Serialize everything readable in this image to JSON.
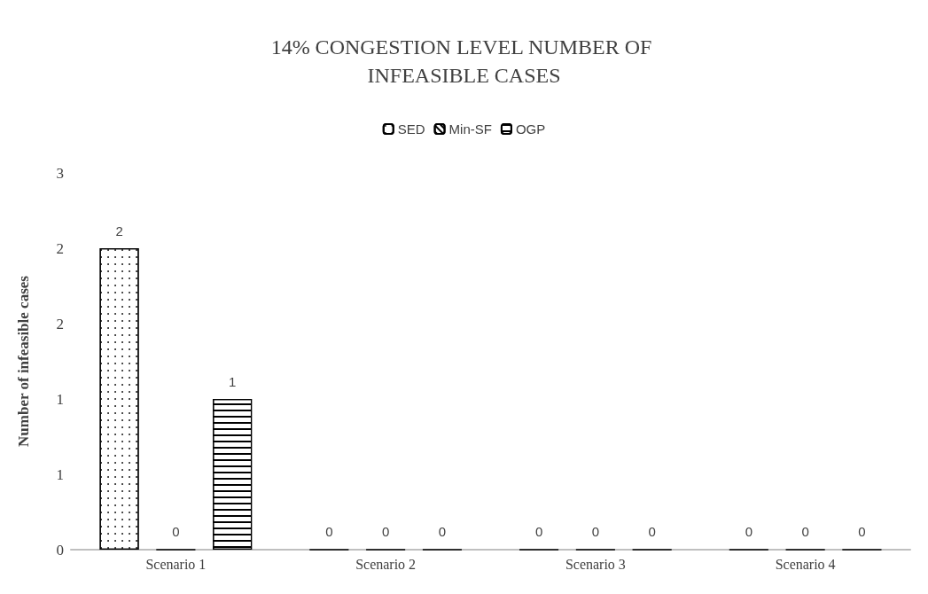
{
  "chart_data": {
    "type": "bar",
    "title": "14% CONGESTION LEVEL NUMBER OF INFEASIBLE CASES",
    "ylabel": "Number of infeasible cases",
    "categories": [
      "Scenario 1",
      "Scenario 2",
      "Scenario 3",
      "Scenario 4"
    ],
    "series": [
      {
        "name": "SED",
        "color": "#000000",
        "values": [
          2,
          0,
          0,
          0
        ]
      },
      {
        "name": "Min-SF",
        "color": "#000000",
        "values": [
          0,
          0,
          0,
          0
        ]
      },
      {
        "name": "OGP",
        "color": "#000000",
        "values": [
          1,
          0,
          0,
          0
        ]
      }
    ],
    "ylim": [
      0,
      2.5
    ],
    "yticks": [
      0,
      {
        "value": 0.5,
        "label": "1"
      },
      1,
      {
        "value": 1.5,
        "label": "2"
      },
      2,
      {
        "value": 2.5,
        "label": "3"
      }
    ],
    "grid": false,
    "legend": "top",
    "data_labels": true
  }
}
